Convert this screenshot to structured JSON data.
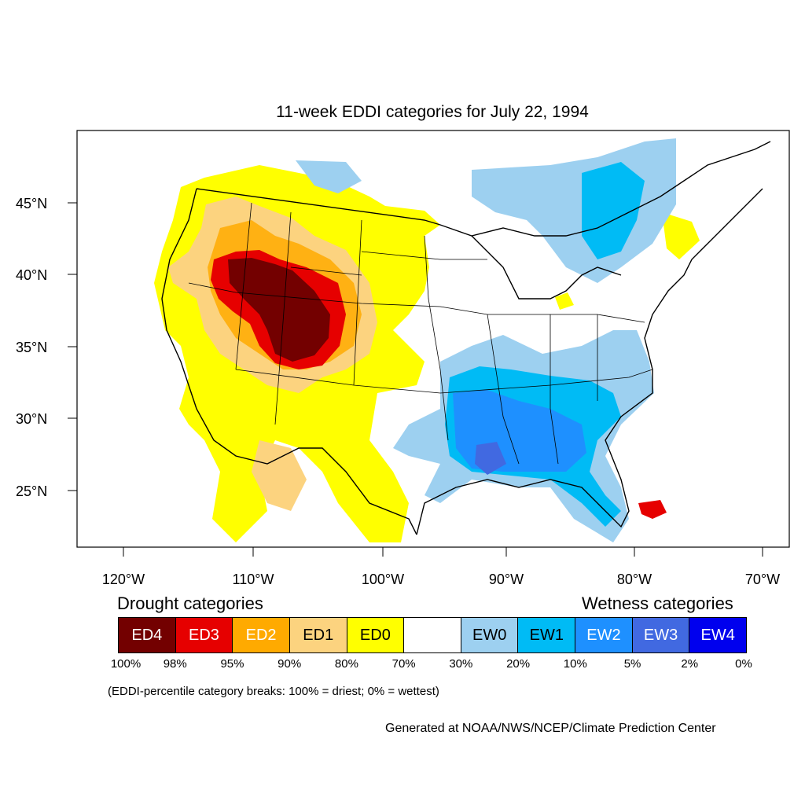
{
  "title": "11-week EDDI categories for July 22, 1994",
  "lat_labels": [
    "45°N",
    "40°N",
    "35°N",
    "30°N",
    "25°N"
  ],
  "lon_labels": [
    "120°W",
    "110°W",
    "100°W",
    "90°W",
    "80°W",
    "70°W"
  ],
  "legend": {
    "drought_heading": "Drought categories",
    "wetness_heading": "Wetness categories",
    "categories": [
      {
        "label": "ED4",
        "color": "#730000",
        "text_color": "#ffffff"
      },
      {
        "label": "ED3",
        "color": "#e60000",
        "text_color": "#ffffff"
      },
      {
        "label": "ED2",
        "color": "#ffaa00",
        "text_color": "#ffffff"
      },
      {
        "label": "ED1",
        "color": "#fcd37f",
        "text_color": "#000000"
      },
      {
        "label": "ED0",
        "color": "#ffff00",
        "text_color": "#000000"
      },
      {
        "label": "",
        "color": "#ffffff",
        "text_color": "#000000"
      },
      {
        "label": "EW0",
        "color": "#9dd0f0",
        "text_color": "#000000"
      },
      {
        "label": "EW1",
        "color": "#00bbf5",
        "text_color": "#000000"
      },
      {
        "label": "EW2",
        "color": "#1e90ff",
        "text_color": "#ffffff"
      },
      {
        "label": "EW3",
        "color": "#4169e1",
        "text_color": "#ffffff"
      },
      {
        "label": "EW4",
        "color": "#0000ee",
        "text_color": "#ffffff"
      }
    ],
    "breaks": [
      "100%",
      "98%",
      "95%",
      "90%",
      "80%",
      "70%",
      "30%",
      "20%",
      "10%",
      "5%",
      "2%",
      "0%"
    ]
  },
  "note": "(EDDI-percentile category breaks: 100% = driest; 0% = wettest)",
  "credit": "Generated at NOAA/NWS/NCEP/Climate Prediction Center"
}
